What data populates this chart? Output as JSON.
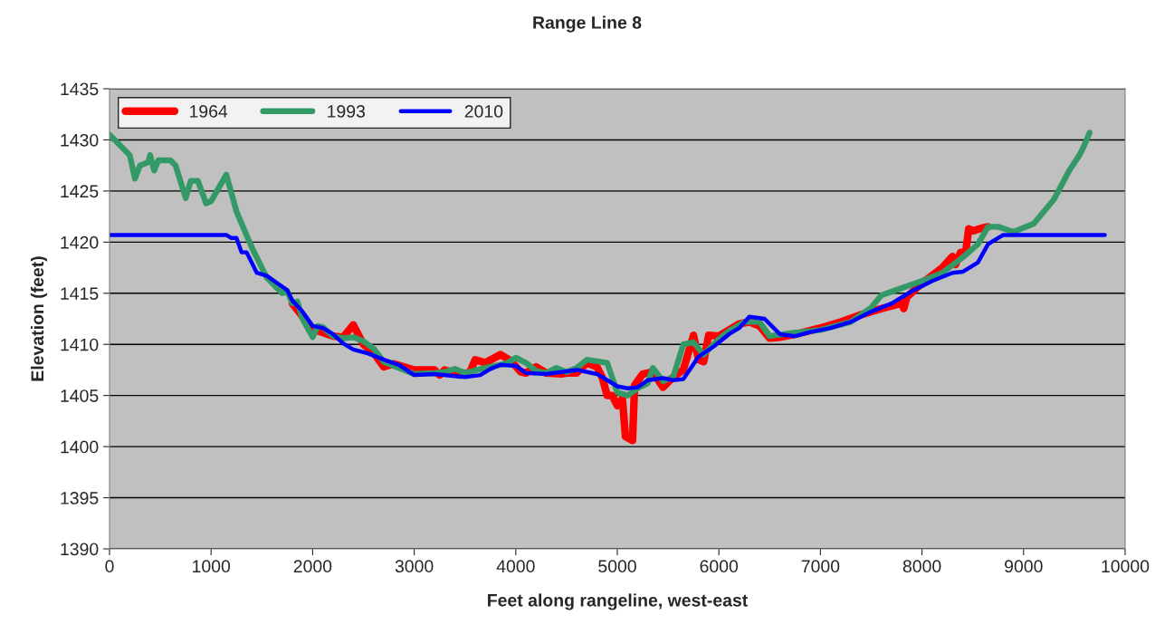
{
  "chart_data": {
    "type": "line",
    "title": "Range Line 8",
    "xlabel": "Feet along rangeline, west-east",
    "ylabel": "Elevation (feet)",
    "xlim": [
      0,
      10000
    ],
    "xticks": [
      0,
      1000,
      2000,
      3000,
      4000,
      5000,
      6000,
      7000,
      8000,
      9000,
      10000
    ],
    "ylim": [
      1390,
      1435
    ],
    "yticks": [
      1390,
      1395,
      1400,
      1405,
      1410,
      1415,
      1420,
      1425,
      1430,
      1435
    ],
    "grid": "y",
    "legend": "top left",
    "marker": "none",
    "line_style": "solid",
    "series": [
      {
        "name": "1964",
        "color": "#ff0000",
        "x": [
          1800,
          2000,
          2200,
          2300,
          2400,
          2500,
          2600,
          2700,
          2800,
          3000,
          3200,
          3250,
          3300,
          3450,
          3550,
          3600,
          3700,
          3850,
          3950,
          4050,
          4100,
          4200,
          4300,
          4450,
          4500,
          4600,
          4700,
          4800,
          4850,
          4900,
          4950,
          5000,
          5050,
          5080,
          5150,
          5170,
          5250,
          5350,
          5450,
          5550,
          5650,
          5700,
          5750,
          5800,
          5850,
          5900,
          6000,
          6200,
          6300,
          6400,
          6500,
          6600,
          6800,
          7000,
          7200,
          7400,
          7600,
          7800,
          7820,
          7850,
          8000,
          8200,
          8300,
          8330,
          8380,
          8430,
          8460,
          8500,
          8600,
          8650
        ],
        "values": [
          1414,
          1411.5,
          1410.8,
          1410.7,
          1411.9,
          1410,
          1409.2,
          1407.8,
          1408.1,
          1407.5,
          1407.5,
          1407,
          1407.5,
          1407,
          1407.3,
          1408.5,
          1408.2,
          1409,
          1408.4,
          1407.3,
          1407.2,
          1407.8,
          1407.2,
          1407.1,
          1407.2,
          1407.2,
          1408.2,
          1407.8,
          1406.8,
          1405,
          1405,
          1404,
          1404.7,
          1401,
          1400.6,
          1406,
          1407.1,
          1407.3,
          1405.8,
          1406.8,
          1407.5,
          1409.2,
          1410.9,
          1408.5,
          1408.3,
          1410.9,
          1410.8,
          1412,
          1412.2,
          1411.8,
          1410.6,
          1410.7,
          1411.1,
          1411.6,
          1412.2,
          1412.9,
          1413.5,
          1414,
          1413.5,
          1414.6,
          1416,
          1417.5,
          1418.6,
          1417.8,
          1419,
          1419,
          1421.3,
          1421.1,
          1421.4,
          1421.5
        ]
      },
      {
        "name": "1993",
        "color": "#339966",
        "x": [
          0,
          100,
          200,
          250,
          300,
          380,
          400,
          440,
          480,
          600,
          650,
          750,
          800,
          870,
          950,
          1000,
          1150,
          1250,
          1400,
          1550,
          1700,
          1750,
          1800,
          1850,
          1900,
          2000,
          2050,
          2100,
          2200,
          2300,
          2400,
          2500,
          2600,
          2700,
          2900,
          3000,
          3200,
          3300,
          3400,
          3500,
          3700,
          3900,
          4000,
          4100,
          4200,
          4300,
          4400,
          4500,
          4600,
          4700,
          4900,
          5000,
          5100,
          5200,
          5300,
          5350,
          5450,
          5550,
          5650,
          5750,
          5850,
          6000,
          6100,
          6250,
          6400,
          6500,
          6700,
          7000,
          7300,
          7500,
          7600,
          7800,
          8000,
          8200,
          8400,
          8550,
          8650,
          8750,
          8900,
          9100,
          9300,
          9450,
          9550,
          9600,
          9650
        ],
        "values": [
          1430.5,
          1429.5,
          1428.5,
          1426.2,
          1427.5,
          1427.8,
          1428.5,
          1427,
          1428,
          1428,
          1427.5,
          1424.3,
          1426,
          1426,
          1423.8,
          1424,
          1426.6,
          1423,
          1419.5,
          1416.5,
          1415,
          1415.2,
          1414,
          1414.2,
          1412.5,
          1410.7,
          1411.8,
          1411.7,
          1410.8,
          1410.6,
          1410.7,
          1410.3,
          1409.6,
          1408.3,
          1407.5,
          1407.1,
          1407.2,
          1407.3,
          1407.6,
          1407.2,
          1407.7,
          1408.1,
          1408.7,
          1408.2,
          1407.4,
          1407.2,
          1407.7,
          1407.3,
          1407.7,
          1408.5,
          1408.2,
          1405.3,
          1405,
          1405.7,
          1406.2,
          1407.7,
          1406.4,
          1406.8,
          1410,
          1410.2,
          1409,
          1410.5,
          1411.3,
          1412.2,
          1412.2,
          1410.8,
          1411.1,
          1411.4,
          1412.2,
          1413.6,
          1414.8,
          1415.5,
          1416.2,
          1417,
          1418.5,
          1419.8,
          1421.5,
          1421.5,
          1421,
          1421.8,
          1424.2,
          1427,
          1428.5,
          1429.5,
          1430.7
        ]
      },
      {
        "name": "2010",
        "color": "#0000ff",
        "x": [
          0,
          1150,
          1200,
          1250,
          1300,
          1350,
          1450,
          1550,
          1650,
          1750,
          1800,
          1900,
          2000,
          2100,
          2200,
          2300,
          2400,
          2550,
          2700,
          2850,
          3000,
          3200,
          3500,
          3650,
          3750,
          3850,
          4000,
          4100,
          4300,
          4600,
          4800,
          5000,
          5100,
          5200,
          5300,
          5450,
          5550,
          5650,
          5800,
          5950,
          6100,
          6200,
          6300,
          6450,
          6600,
          6750,
          6900,
          7100,
          7300,
          7500,
          7700,
          7900,
          8100,
          8300,
          8400,
          8550,
          8650,
          8700,
          8800,
          9800
        ],
        "values": [
          1420.7,
          1420.7,
          1420.4,
          1420.4,
          1419,
          1419,
          1417,
          1416.7,
          1416,
          1415.3,
          1414.3,
          1413.2,
          1411.8,
          1411.6,
          1411,
          1410.1,
          1409.5,
          1409.1,
          1408.5,
          1408,
          1407,
          1407.1,
          1406.8,
          1407,
          1407.6,
          1408,
          1407.9,
          1407.2,
          1407.1,
          1407.5,
          1407.1,
          1405.9,
          1405.7,
          1405.8,
          1406.5,
          1406.7,
          1406.5,
          1406.6,
          1408.8,
          1409.8,
          1411,
          1411.6,
          1412.7,
          1412.5,
          1411,
          1410.8,
          1411.2,
          1411.6,
          1412.2,
          1413.2,
          1414,
          1415.2,
          1416.2,
          1417,
          1417.1,
          1418,
          1419.8,
          1420.1,
          1420.7,
          1420.7
        ]
      }
    ]
  }
}
